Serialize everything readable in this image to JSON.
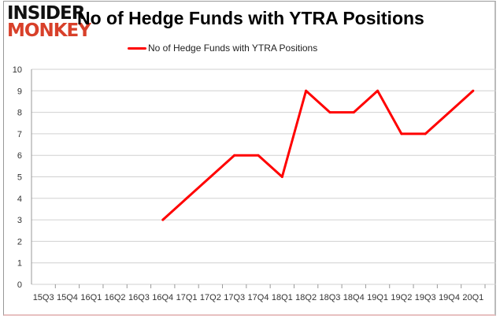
{
  "logo": {
    "line1": "INSIDER",
    "line2": "MONKEY"
  },
  "chart_data": {
    "type": "line",
    "title": "No of Hedge Funds with YTRA Positions",
    "xlabel": "",
    "ylabel": "",
    "categories": [
      "15Q3",
      "15Q4",
      "16Q1",
      "16Q2",
      "16Q3",
      "16Q4",
      "17Q1",
      "17Q2",
      "17Q3",
      "17Q4",
      "18Q1",
      "18Q2",
      "18Q3",
      "18Q4",
      "19Q1",
      "19Q2",
      "19Q3",
      "19Q4",
      "20Q1"
    ],
    "series": [
      {
        "name": "No of Hedge Funds with YTRA Positions",
        "color": "#ff0000",
        "values": [
          null,
          null,
          null,
          null,
          null,
          3,
          4,
          5,
          6,
          6,
          5,
          9,
          8,
          8,
          9,
          7,
          7,
          8,
          9
        ]
      }
    ],
    "ylim": [
      0,
      10
    ],
    "yticks": [
      0,
      1,
      2,
      3,
      4,
      5,
      6,
      7,
      8,
      9,
      10
    ],
    "grid": true,
    "legend": "top-center"
  }
}
